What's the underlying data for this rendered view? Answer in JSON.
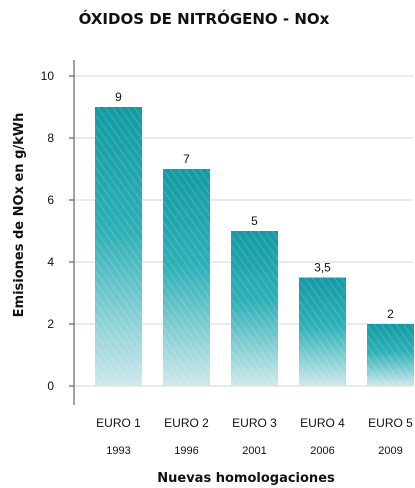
{
  "chart_data": {
    "type": "bar",
    "title": "ÓXIDOS DE NITRÓGENO  - NOx",
    "xlabel": "Nuevas homologaciones",
    "ylabel": "Emisiones de NOx en g/kWh",
    "ylim": [
      0,
      10
    ],
    "yticks": [
      0,
      2,
      4,
      6,
      8,
      10
    ],
    "grid": true,
    "categories": [
      "EURO 1",
      "EURO 2",
      "EURO 3",
      "EURO 4",
      "EURO 5"
    ],
    "years": [
      "1993",
      "1996",
      "2001",
      "2006",
      "2009"
    ],
    "values": [
      9,
      7,
      5,
      3.5,
      2
    ],
    "value_labels": [
      "9",
      "7",
      "5",
      "3,5",
      "2"
    ],
    "colors": {
      "bar_top": "#139aa3",
      "bar_mid": "#2fb0b7",
      "bar_bottom": "#cfe9ec",
      "grid": "#d6d6d6",
      "axis": "#444444"
    }
  }
}
